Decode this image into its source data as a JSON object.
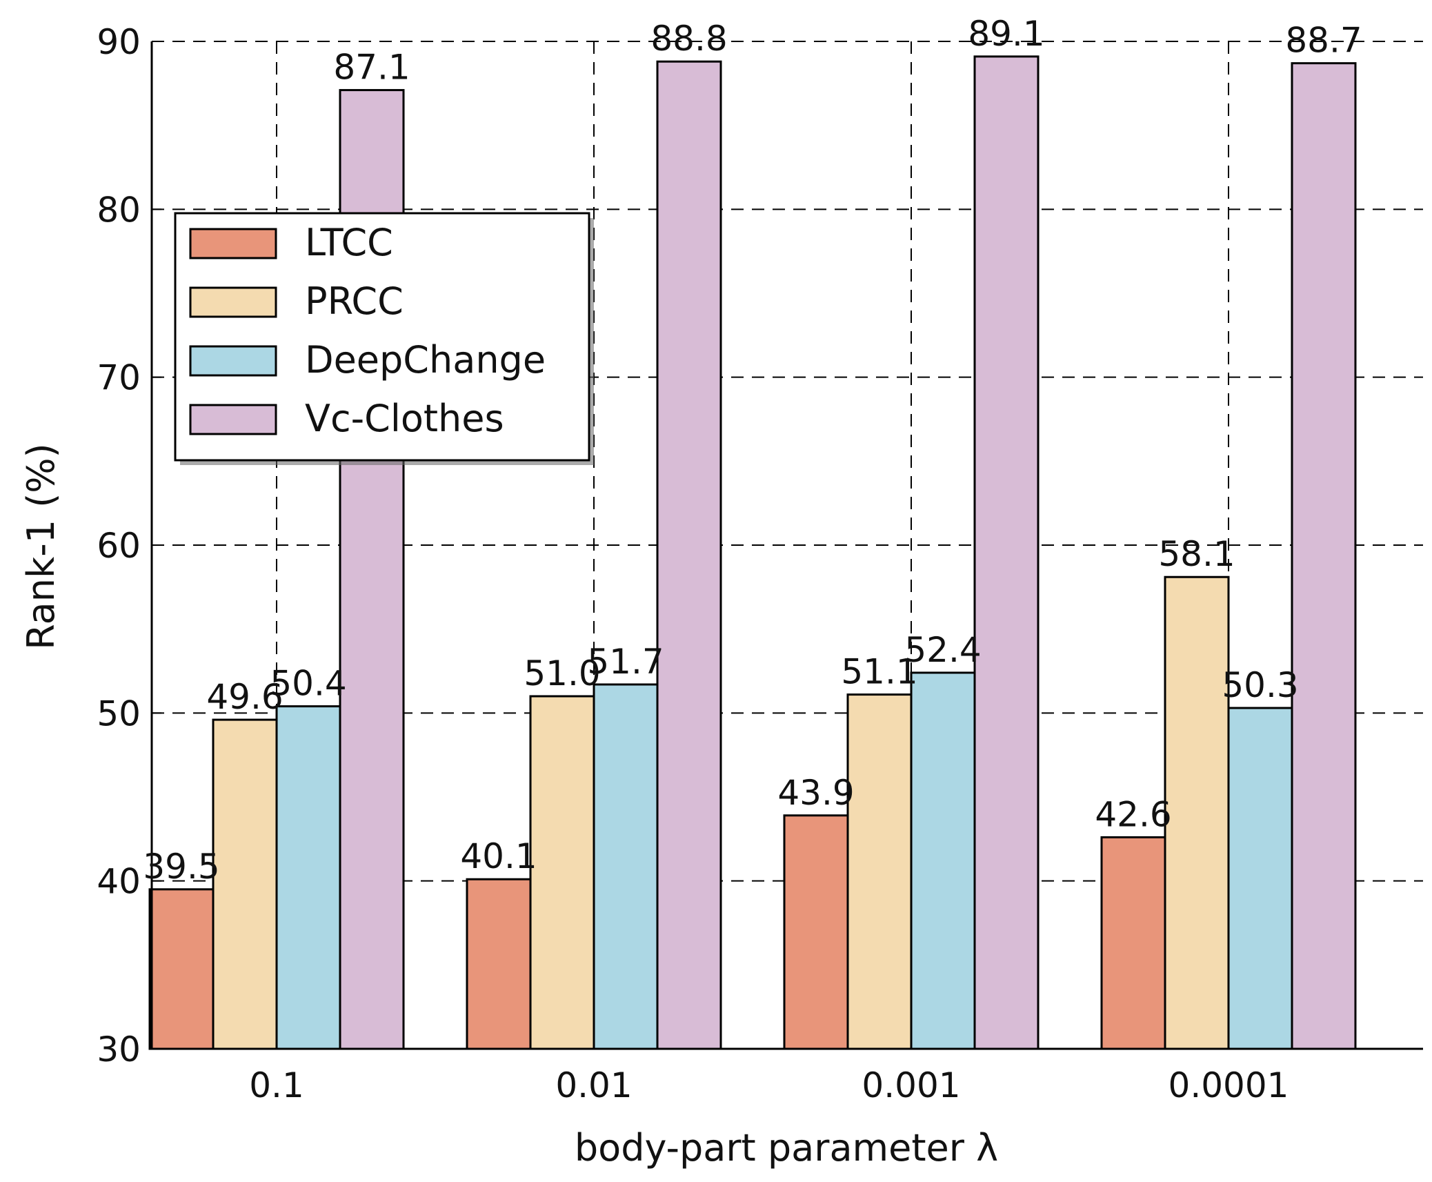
{
  "chart_data": {
    "type": "bar",
    "title": "",
    "xlabel": "body-part parameter λ",
    "ylabel": "Rank-1 (%)",
    "ylim": [
      30,
      90
    ],
    "yticks": [
      30,
      40,
      50,
      60,
      70,
      80,
      90
    ],
    "grid": true,
    "legend_position": "upper-left",
    "categories": [
      "0.1",
      "0.01",
      "0.001",
      "0.0001"
    ],
    "series": [
      {
        "name": "LTCC",
        "color": "#e8957a",
        "values": [
          39.5,
          40.1,
          43.9,
          42.6
        ],
        "labels": [
          "39.5",
          "40.1",
          "43.9",
          "42.6"
        ]
      },
      {
        "name": "PRCC",
        "color": "#f4dbb0",
        "values": [
          49.6,
          51.0,
          51.1,
          58.1
        ],
        "labels": [
          "49.6",
          "51.0",
          "51.1",
          "58.1"
        ]
      },
      {
        "name": "DeepChange",
        "color": "#acd7e4",
        "values": [
          50.4,
          51.7,
          52.4,
          50.3
        ],
        "labels": [
          "50.4",
          "51.7",
          "52.4",
          "50.3"
        ]
      },
      {
        "name": "Vc-Clothes",
        "color": "#d8bcd6",
        "values": [
          87.1,
          88.8,
          89.1,
          88.7
        ],
        "labels": [
          "87.1",
          "88.8",
          "89.1",
          "88.7"
        ]
      }
    ]
  }
}
